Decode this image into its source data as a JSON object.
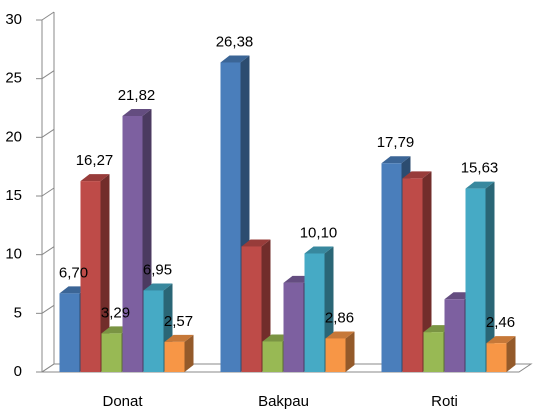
{
  "chart_data": {
    "type": "bar3d",
    "categories": [
      "Donat",
      "Bakpau",
      "Roti"
    ],
    "series": [
      {
        "color": "#4a7ebb",
        "values": [
          6.7,
          26.38,
          17.79
        ],
        "value_labels": [
          "6,70",
          "26,38",
          "17,79"
        ]
      },
      {
        "color": "#be4b48",
        "values": [
          16.27,
          10.7,
          16.5
        ],
        "value_labels": [
          "16,27",
          null,
          null
        ]
      },
      {
        "color": "#98b954",
        "values": [
          3.29,
          2.6,
          3.4
        ],
        "value_labels": [
          "3,29",
          null,
          null
        ]
      },
      {
        "color": "#7d60a0",
        "values": [
          21.82,
          7.6,
          6.2
        ],
        "value_labels": [
          "21,82",
          null,
          null
        ]
      },
      {
        "color": "#46aac5",
        "values": [
          6.95,
          10.1,
          15.63
        ],
        "value_labels": [
          "6,95",
          "10,10",
          "15,63"
        ]
      },
      {
        "color": "#f79646",
        "values": [
          2.57,
          2.86,
          2.46
        ],
        "value_labels": [
          "2,57",
          "2,86",
          "2,46"
        ]
      }
    ],
    "ylim": [
      0,
      30
    ],
    "yticks": [
      0,
      5,
      10,
      15,
      20,
      25,
      30
    ]
  }
}
